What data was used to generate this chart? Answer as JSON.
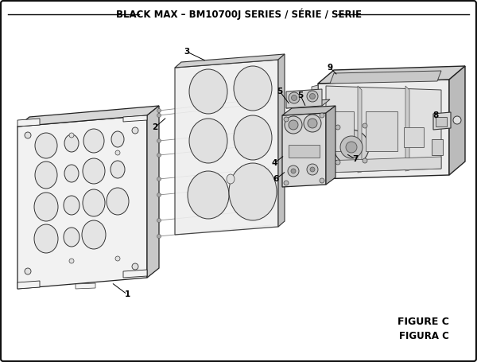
{
  "title": "BLACK MAX – BM10700J SERIES / SÉRIE / SERIE",
  "figure_label": "FIGURE C",
  "figura_label": "FIGURA C",
  "bg_color": "#ffffff",
  "border_color": "#000000",
  "title_fontsize": 8.5,
  "figure_label_fontsize": 9
}
